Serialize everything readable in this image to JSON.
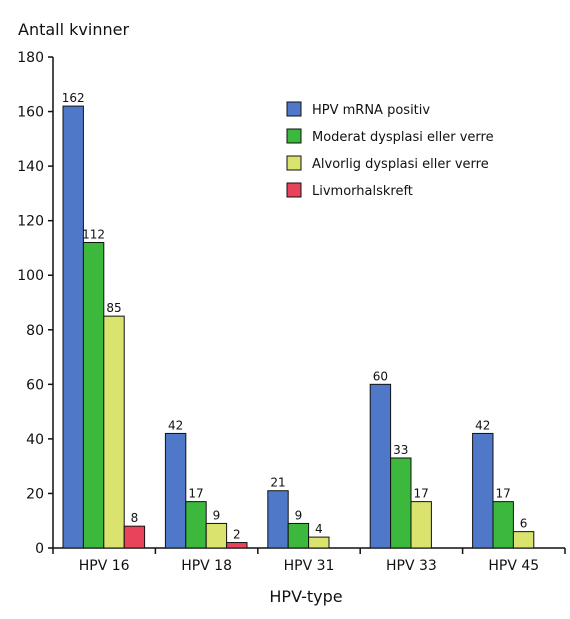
{
  "chart_data": {
    "type": "bar",
    "ylabel": "Antall kvinner",
    "xlabel": "HPV-type",
    "ylim": [
      0,
      180
    ],
    "yticks": [
      0,
      20,
      40,
      60,
      80,
      100,
      120,
      140,
      160,
      180
    ],
    "categories": [
      "HPV 16",
      "HPV 18",
      "HPV 31",
      "HPV 33",
      "HPV 45"
    ],
    "series": [
      {
        "name": "HPV mRNA positiv",
        "color": "#4f78c8",
        "values": [
          162,
          42,
          21,
          60,
          42
        ]
      },
      {
        "name": "Moderat dysplasi eller verre",
        "color": "#3cb83c",
        "values": [
          112,
          17,
          9,
          33,
          17
        ]
      },
      {
        "name": "Alvorlig dysplasi eller verre",
        "color": "#d9e36e",
        "values": [
          85,
          9,
          4,
          17,
          6
        ]
      },
      {
        "name": "Livmorhalskreft",
        "color": "#e8435a",
        "values": [
          8,
          2,
          null,
          null,
          null
        ]
      }
    ],
    "legend_position": "top-right",
    "grid": false
  }
}
